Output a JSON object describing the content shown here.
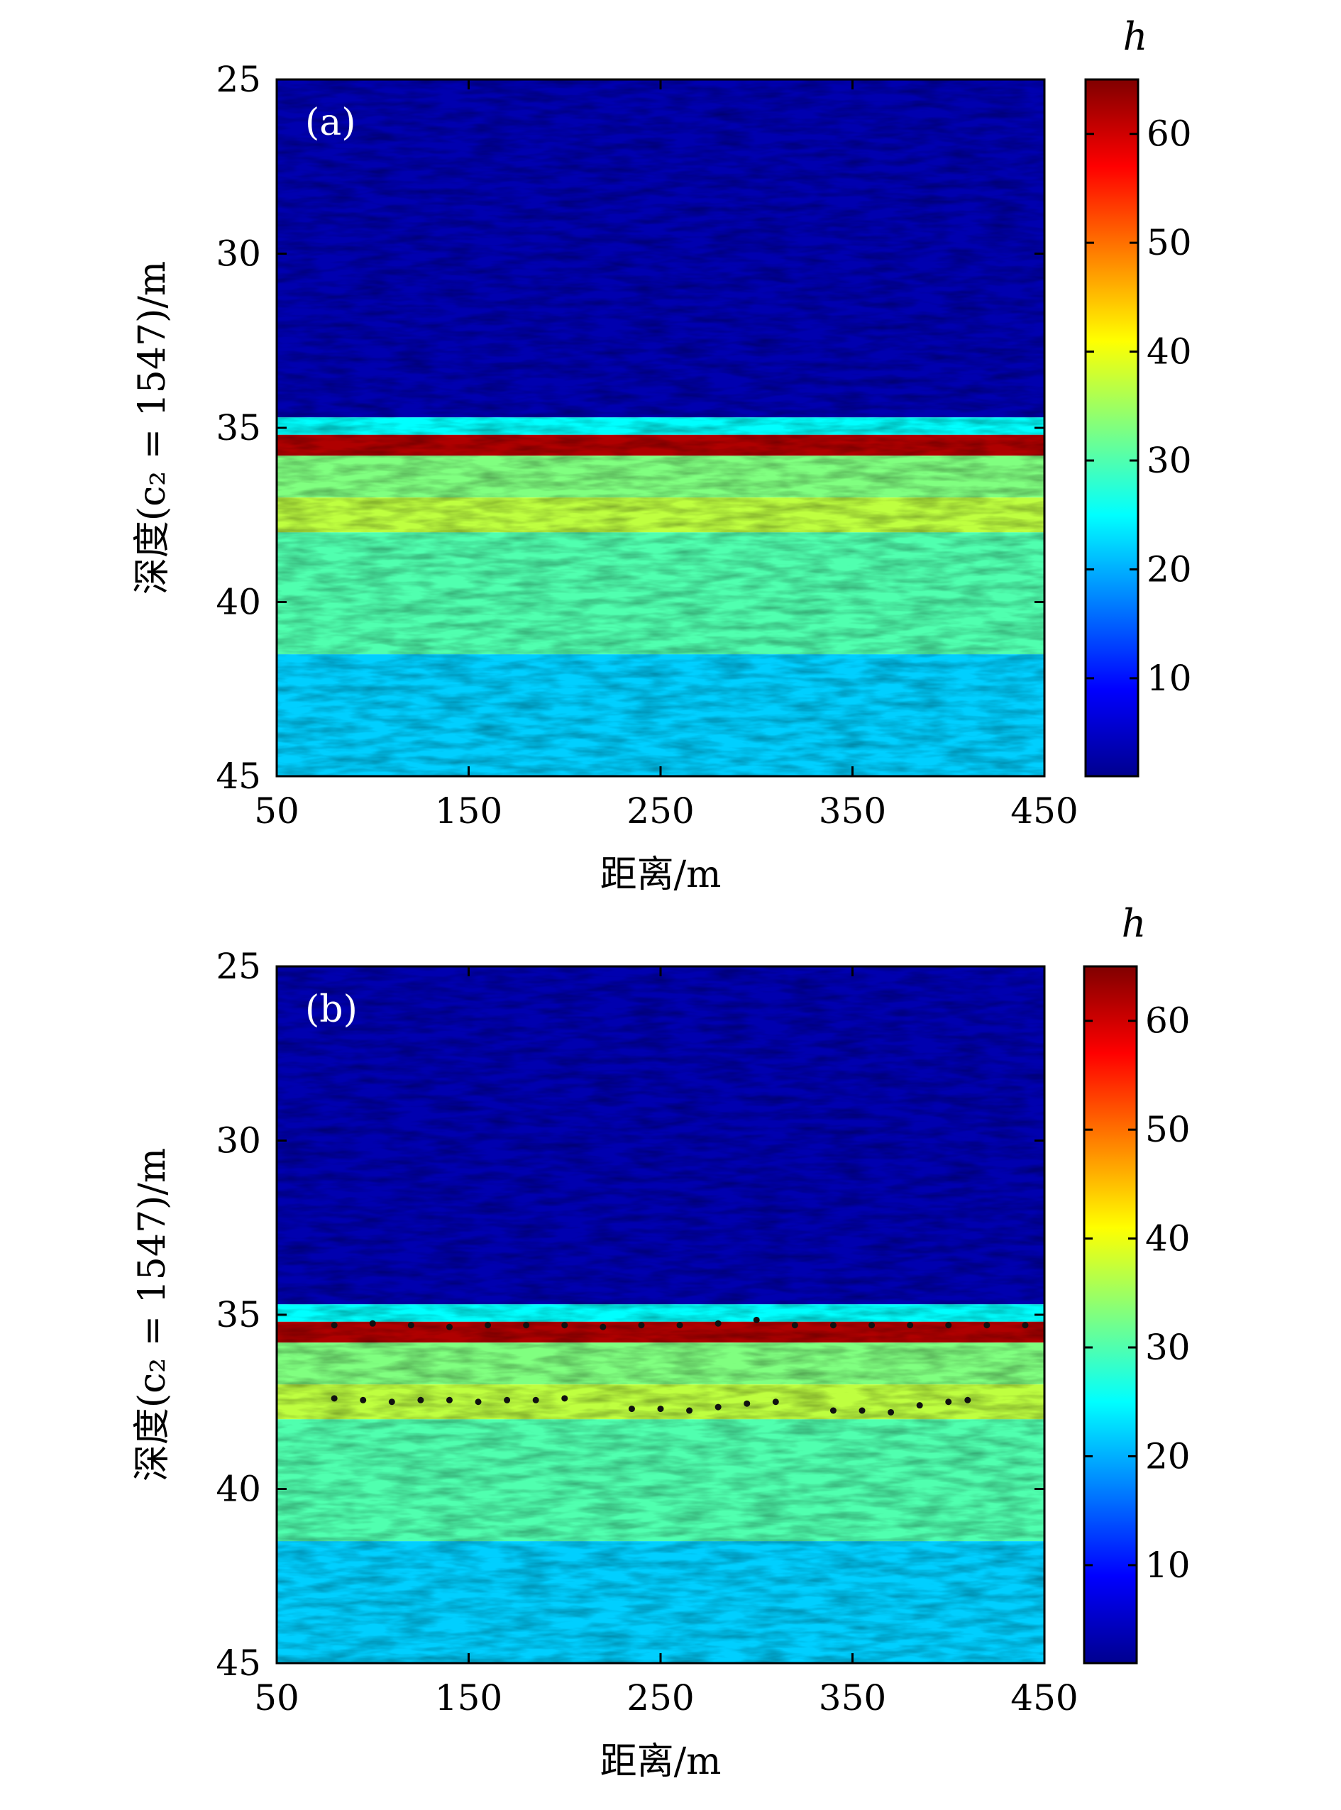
{
  "chart_data": [
    {
      "type": "heatmap",
      "panel_label": "(a)",
      "xlabel": "距离/m",
      "ylabel": "深度(c₂ = 1547)/m",
      "colorbar_label": "h",
      "xlim": [
        50,
        450
      ],
      "ylim": [
        45,
        25
      ],
      "xticks": [
        "50",
        "150",
        "250",
        "350",
        "450"
      ],
      "yticks": [
        "25",
        "30",
        "35",
        "40",
        "45"
      ],
      "colorbar_range": [
        1,
        65
      ],
      "colorbar_ticks": [
        "10",
        "20",
        "30",
        "40",
        "50",
        "60"
      ],
      "colormap": "jet",
      "regions": [
        {
          "depth_from": 25,
          "depth_to": 34.7,
          "level": 4
        },
        {
          "depth_from": 34.7,
          "depth_to": 35.2,
          "level": 25
        },
        {
          "depth_from": 35.2,
          "depth_to": 35.8,
          "level": 62
        },
        {
          "depth_from": 35.8,
          "depth_to": 37.0,
          "level": 33
        },
        {
          "depth_from": 37.0,
          "depth_to": 38.0,
          "level": 37
        },
        {
          "depth_from": 38.0,
          "depth_to": 41.5,
          "level": 30
        },
        {
          "depth_from": 41.5,
          "depth_to": 45,
          "level": 22
        }
      ],
      "picked_points": []
    },
    {
      "type": "heatmap",
      "panel_label": "(b)",
      "xlabel": "距离/m",
      "ylabel": "深度(c₂ = 1547)/m",
      "colorbar_label": "h",
      "xlim": [
        50,
        450
      ],
      "ylim": [
        45,
        25
      ],
      "xticks": [
        "50",
        "150",
        "250",
        "350",
        "450"
      ],
      "yticks": [
        "25",
        "30",
        "35",
        "40",
        "45"
      ],
      "colorbar_range": [
        1,
        65
      ],
      "colorbar_ticks": [
        "10",
        "20",
        "30",
        "40",
        "50",
        "60"
      ],
      "colormap": "jet",
      "regions": [
        {
          "depth_from": 25,
          "depth_to": 34.7,
          "level": 4
        },
        {
          "depth_from": 34.7,
          "depth_to": 35.2,
          "level": 25
        },
        {
          "depth_from": 35.2,
          "depth_to": 35.8,
          "level": 62
        },
        {
          "depth_from": 35.8,
          "depth_to": 37.0,
          "level": 33
        },
        {
          "depth_from": 37.0,
          "depth_to": 38.0,
          "level": 37
        },
        {
          "depth_from": 38.0,
          "depth_to": 41.5,
          "level": 30
        },
        {
          "depth_from": 41.5,
          "depth_to": 45,
          "level": 22
        }
      ],
      "picked_points": [
        {
          "name": "upper-interface",
          "x": [
            80,
            100,
            120,
            140,
            160,
            180,
            200,
            220,
            240,
            260,
            280,
            300,
            320,
            340,
            360,
            380,
            400,
            420,
            440
          ],
          "y": [
            35.3,
            35.25,
            35.3,
            35.35,
            35.3,
            35.3,
            35.3,
            35.35,
            35.3,
            35.3,
            35.25,
            35.15,
            35.3,
            35.3,
            35.3,
            35.3,
            35.3,
            35.3,
            35.3
          ]
        },
        {
          "name": "lower-interface",
          "x": [
            80,
            95,
            110,
            125,
            140,
            155,
            170,
            185,
            200,
            235,
            250,
            265,
            280,
            295,
            310,
            340,
            355,
            370,
            385,
            400,
            410
          ],
          "y": [
            37.4,
            37.45,
            37.5,
            37.45,
            37.45,
            37.5,
            37.45,
            37.45,
            37.4,
            37.7,
            37.7,
            37.75,
            37.65,
            37.55,
            37.5,
            37.75,
            37.75,
            37.8,
            37.6,
            37.5,
            37.45
          ]
        }
      ]
    }
  ]
}
